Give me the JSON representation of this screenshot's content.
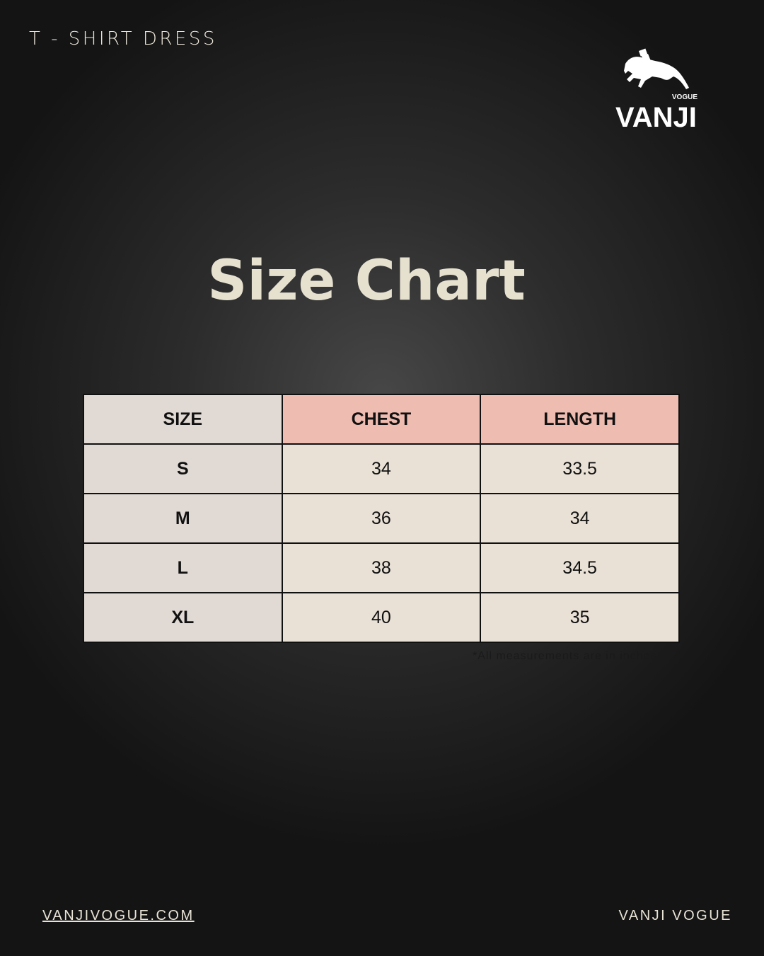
{
  "header": {
    "category": "T - SHIRT DRESS"
  },
  "logo": {
    "text": "VANJI",
    "subtext": "VOGUE",
    "icon": "horse-jumper-icon"
  },
  "title": "Size Chart",
  "table": {
    "headers": [
      "SIZE",
      "CHEST",
      "LENGTH"
    ],
    "rows": [
      [
        "S",
        "34",
        "33.5"
      ],
      [
        "M",
        "36",
        "34"
      ],
      [
        "L",
        "38",
        "34.5"
      ],
      [
        "XL",
        "40",
        "35"
      ]
    ]
  },
  "note": "*All measurements are in inches.",
  "footer": {
    "website": "VANJIVOGUE.COM",
    "brand": "VANJI VOGUE"
  },
  "colors": {
    "size_column": "#e0d9d4",
    "header_accent": "#eebcb0",
    "cell": "#e9e1d6"
  }
}
